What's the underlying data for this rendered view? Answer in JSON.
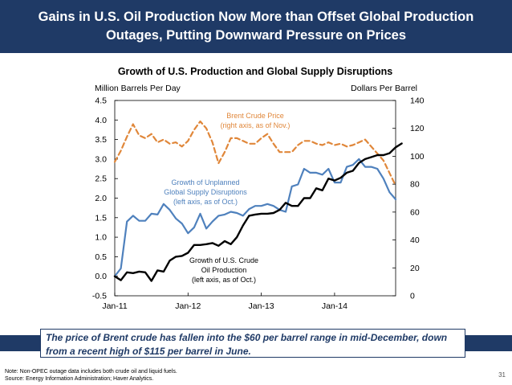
{
  "slide": {
    "title_line1": "Gains in U.S. Oil Production Now More than Offset Global Production",
    "title_line2": "Outages, Putting Downward Pressure on Prices",
    "callout_line1": "The price of Brent crude has fallen into the $60 per barrel range in mid-December, down",
    "callout_line2": "from a recent high of $115 per barrel in June.",
    "note": "Note: Non-OPEC outage data includes both crude oil and liquid fuels.",
    "source": "Source: Energy Information Administration; Haver Analytics.",
    "page_number": "31"
  },
  "colors": {
    "header_bg": "#1f3a66",
    "us_production": "#000000",
    "disruptions": "#4f81bd",
    "brent": "#e0873a"
  },
  "chart_data": {
    "type": "line",
    "title": "Growth of U.S. Production and Global Supply Disruptions",
    "ylabel_left": "Million Barrels Per Day",
    "ylabel_right": "Dollars Per Barrel",
    "ylim_left": [
      -0.5,
      4.5
    ],
    "ylim_right": [
      0,
      140
    ],
    "yticks_left": [
      "-0.5",
      "0.0",
      "0.5",
      "1.0",
      "1.5",
      "2.0",
      "2.5",
      "3.0",
      "3.5",
      "4.0",
      "4.5"
    ],
    "yticks_right": [
      "0",
      "20",
      "40",
      "60",
      "80",
      "100",
      "120",
      "140"
    ],
    "x_range": [
      "2011-01",
      "2014-11"
    ],
    "xticks": [
      "Jan-11",
      "Jan-12",
      "Jan-13",
      "Jan-14"
    ],
    "annotations": {
      "brent": [
        "Brent Crude Price",
        "(right axis, as of Nov.)"
      ],
      "disruptions": [
        "Growth of Unplanned",
        "Global Supply Disruptions",
        "(left axis, as of Oct.)"
      ],
      "us_production": [
        "Growth of U.S. Crude",
        "Oil Production",
        "(left axis, as of Oct.)"
      ]
    },
    "series": [
      {
        "key": "us_production",
        "axis": "left",
        "start": "2011-01",
        "values": [
          0.0,
          -0.1,
          0.1,
          0.08,
          0.12,
          0.1,
          -0.12,
          0.15,
          0.12,
          0.4,
          0.5,
          0.52,
          0.6,
          0.8,
          0.8,
          0.82,
          0.85,
          0.78,
          0.9,
          0.82,
          1.0,
          1.3,
          1.55,
          1.58,
          1.6,
          1.6,
          1.62,
          1.7,
          1.88,
          1.8,
          1.8,
          2.0,
          2.0,
          2.25,
          2.2,
          2.5,
          2.45,
          2.52,
          2.65,
          2.7,
          2.9,
          3.0,
          3.05,
          3.1,
          3.1,
          3.15,
          3.3,
          3.4
        ]
      },
      {
        "key": "disruptions",
        "axis": "left",
        "start": "2011-01",
        "values": [
          0.0,
          0.2,
          1.4,
          1.55,
          1.42,
          1.42,
          1.6,
          1.58,
          1.85,
          1.7,
          1.48,
          1.35,
          1.1,
          1.25,
          1.6,
          1.22,
          1.4,
          1.55,
          1.58,
          1.65,
          1.62,
          1.55,
          1.72,
          1.8,
          1.8,
          1.85,
          1.8,
          1.7,
          1.65,
          2.3,
          2.35,
          2.75,
          2.65,
          2.65,
          2.6,
          2.75,
          2.4,
          2.4,
          2.8,
          2.85,
          3.0,
          2.8,
          2.8,
          2.75,
          2.5,
          2.15,
          1.97
        ]
      },
      {
        "key": "brent",
        "axis": "right",
        "start": "2011-01",
        "values": [
          96,
          104,
          114,
          123,
          115,
          113,
          116,
          110,
          112,
          109,
          110,
          107,
          111,
          119,
          125,
          120,
          110,
          95,
          103,
          113,
          113,
          111,
          109,
          109,
          113,
          116,
          109,
          103,
          103,
          103,
          108,
          111,
          111,
          109,
          108,
          110,
          108,
          109,
          107,
          108,
          110,
          112,
          107,
          102,
          97,
          88,
          79
        ]
      }
    ]
  }
}
